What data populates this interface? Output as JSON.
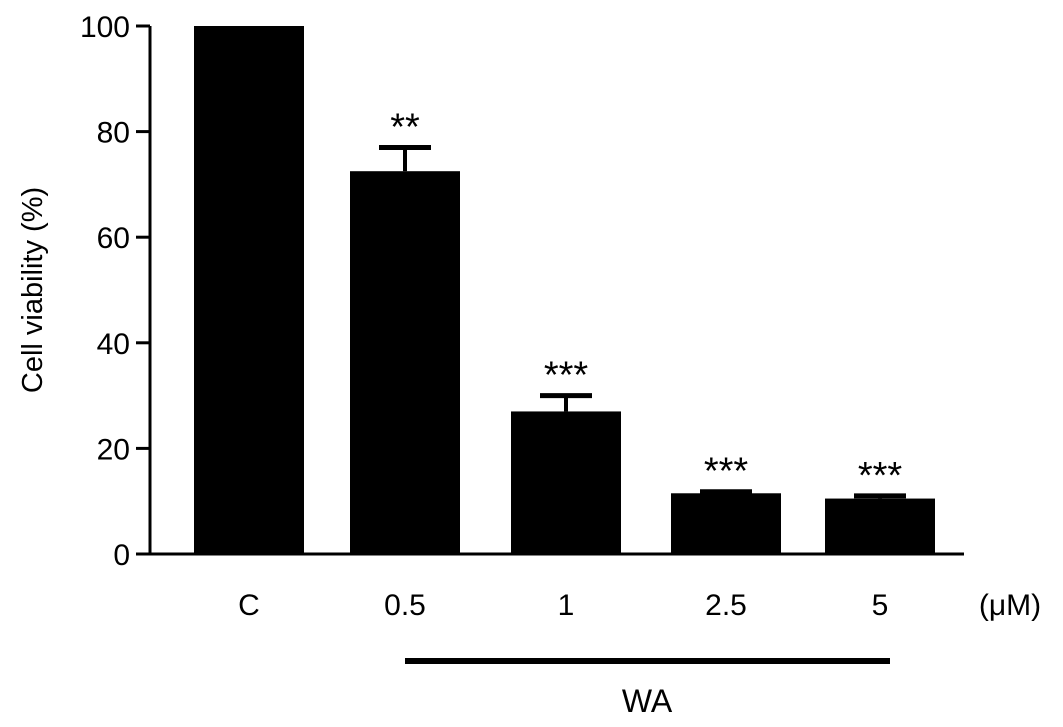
{
  "chart_data": {
    "type": "bar",
    "categories": [
      "C",
      "0.5",
      "1",
      "2.5",
      "5"
    ],
    "values": [
      100,
      72.5,
      27,
      11.5,
      10.5
    ],
    "error_upper": [
      0,
      4.5,
      3,
      0.3,
      0.5
    ],
    "significance": [
      "",
      "**",
      "***",
      "***",
      "***"
    ],
    "ylabel": "Cell viability (%)",
    "xunit": "(μM)",
    "ylim": [
      0,
      100
    ],
    "yticks": [
      0,
      20,
      40,
      60,
      80,
      100
    ],
    "group_label": "WA",
    "group_categories": [
      "0.5",
      "1",
      "2.5",
      "5"
    ],
    "grid": false,
    "bar_color": "#000000"
  }
}
